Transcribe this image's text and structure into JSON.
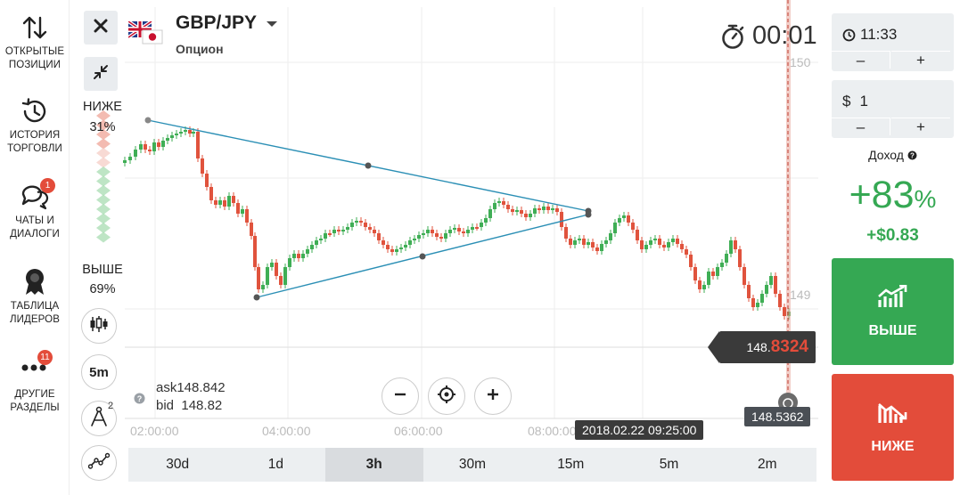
{
  "sidebar": {
    "items": [
      {
        "label1": "ОТКРЫТЫЕ",
        "label2": "ПОЗИЦИИ",
        "icon": "up-down-arrows-icon"
      },
      {
        "label1": "ИСТОРИЯ",
        "label2": "ТОРГОВЛИ",
        "icon": "history-clock-icon"
      },
      {
        "label1": "ЧАТЫ И",
        "label2": "ДИАЛОГИ",
        "icon": "chat-bubbles-icon",
        "badge": "1"
      },
      {
        "label1": "ТАБЛИЦА",
        "label2": "ЛИДЕРОВ",
        "icon": "medal-icon"
      },
      {
        "label1": "ДРУГИЕ",
        "label2": "РАЗДЕЛЫ",
        "icon": "more-dots-icon",
        "badge": "11"
      }
    ]
  },
  "asset": {
    "name": "GBP/JPY",
    "type": "Опцион"
  },
  "timer": "00:01",
  "sentiment": {
    "lower_label": "НИЖЕ",
    "lower_pct": "31%",
    "higher_label": "ВЫШЕ",
    "higher_pct": "69%"
  },
  "tools": {
    "indicator_count": "2",
    "candle_period": "5m"
  },
  "quote": {
    "ask_label": "ask",
    "ask": "148.842",
    "bid_label": "bid",
    "bid": "148.82"
  },
  "price_axis": {
    "top": "150",
    "mid": "149"
  },
  "price_tag": {
    "prefix": "148.",
    "highlight": "8324"
  },
  "expiry_price": "148.5362",
  "time_labels": [
    "02:00:00",
    "04:00:00",
    "06:00:00",
    "08:00:00"
  ],
  "current_time": "2018.02.22 09:25:00",
  "timeframes": [
    "30d",
    "1d",
    "3h",
    "30m",
    "15m",
    "5m",
    "2m"
  ],
  "active_timeframe": "3h",
  "right_panel": {
    "expiry_time": "11:33",
    "amount_symbol": "$",
    "amount": "1",
    "minus": "–",
    "plus": "+",
    "profit_label": "Доход",
    "profit_pct_num": "+83",
    "profit_pct_sign": "%",
    "profit_amount": "+$0.83",
    "buy_label": "ВЫШЕ",
    "sell_label": "НИЖЕ"
  },
  "colors": {
    "up": "#3fae55",
    "down": "#e0533d",
    "trendline": "#2b8fb5",
    "buy": "#35a853",
    "sell": "#e34c3a"
  }
}
